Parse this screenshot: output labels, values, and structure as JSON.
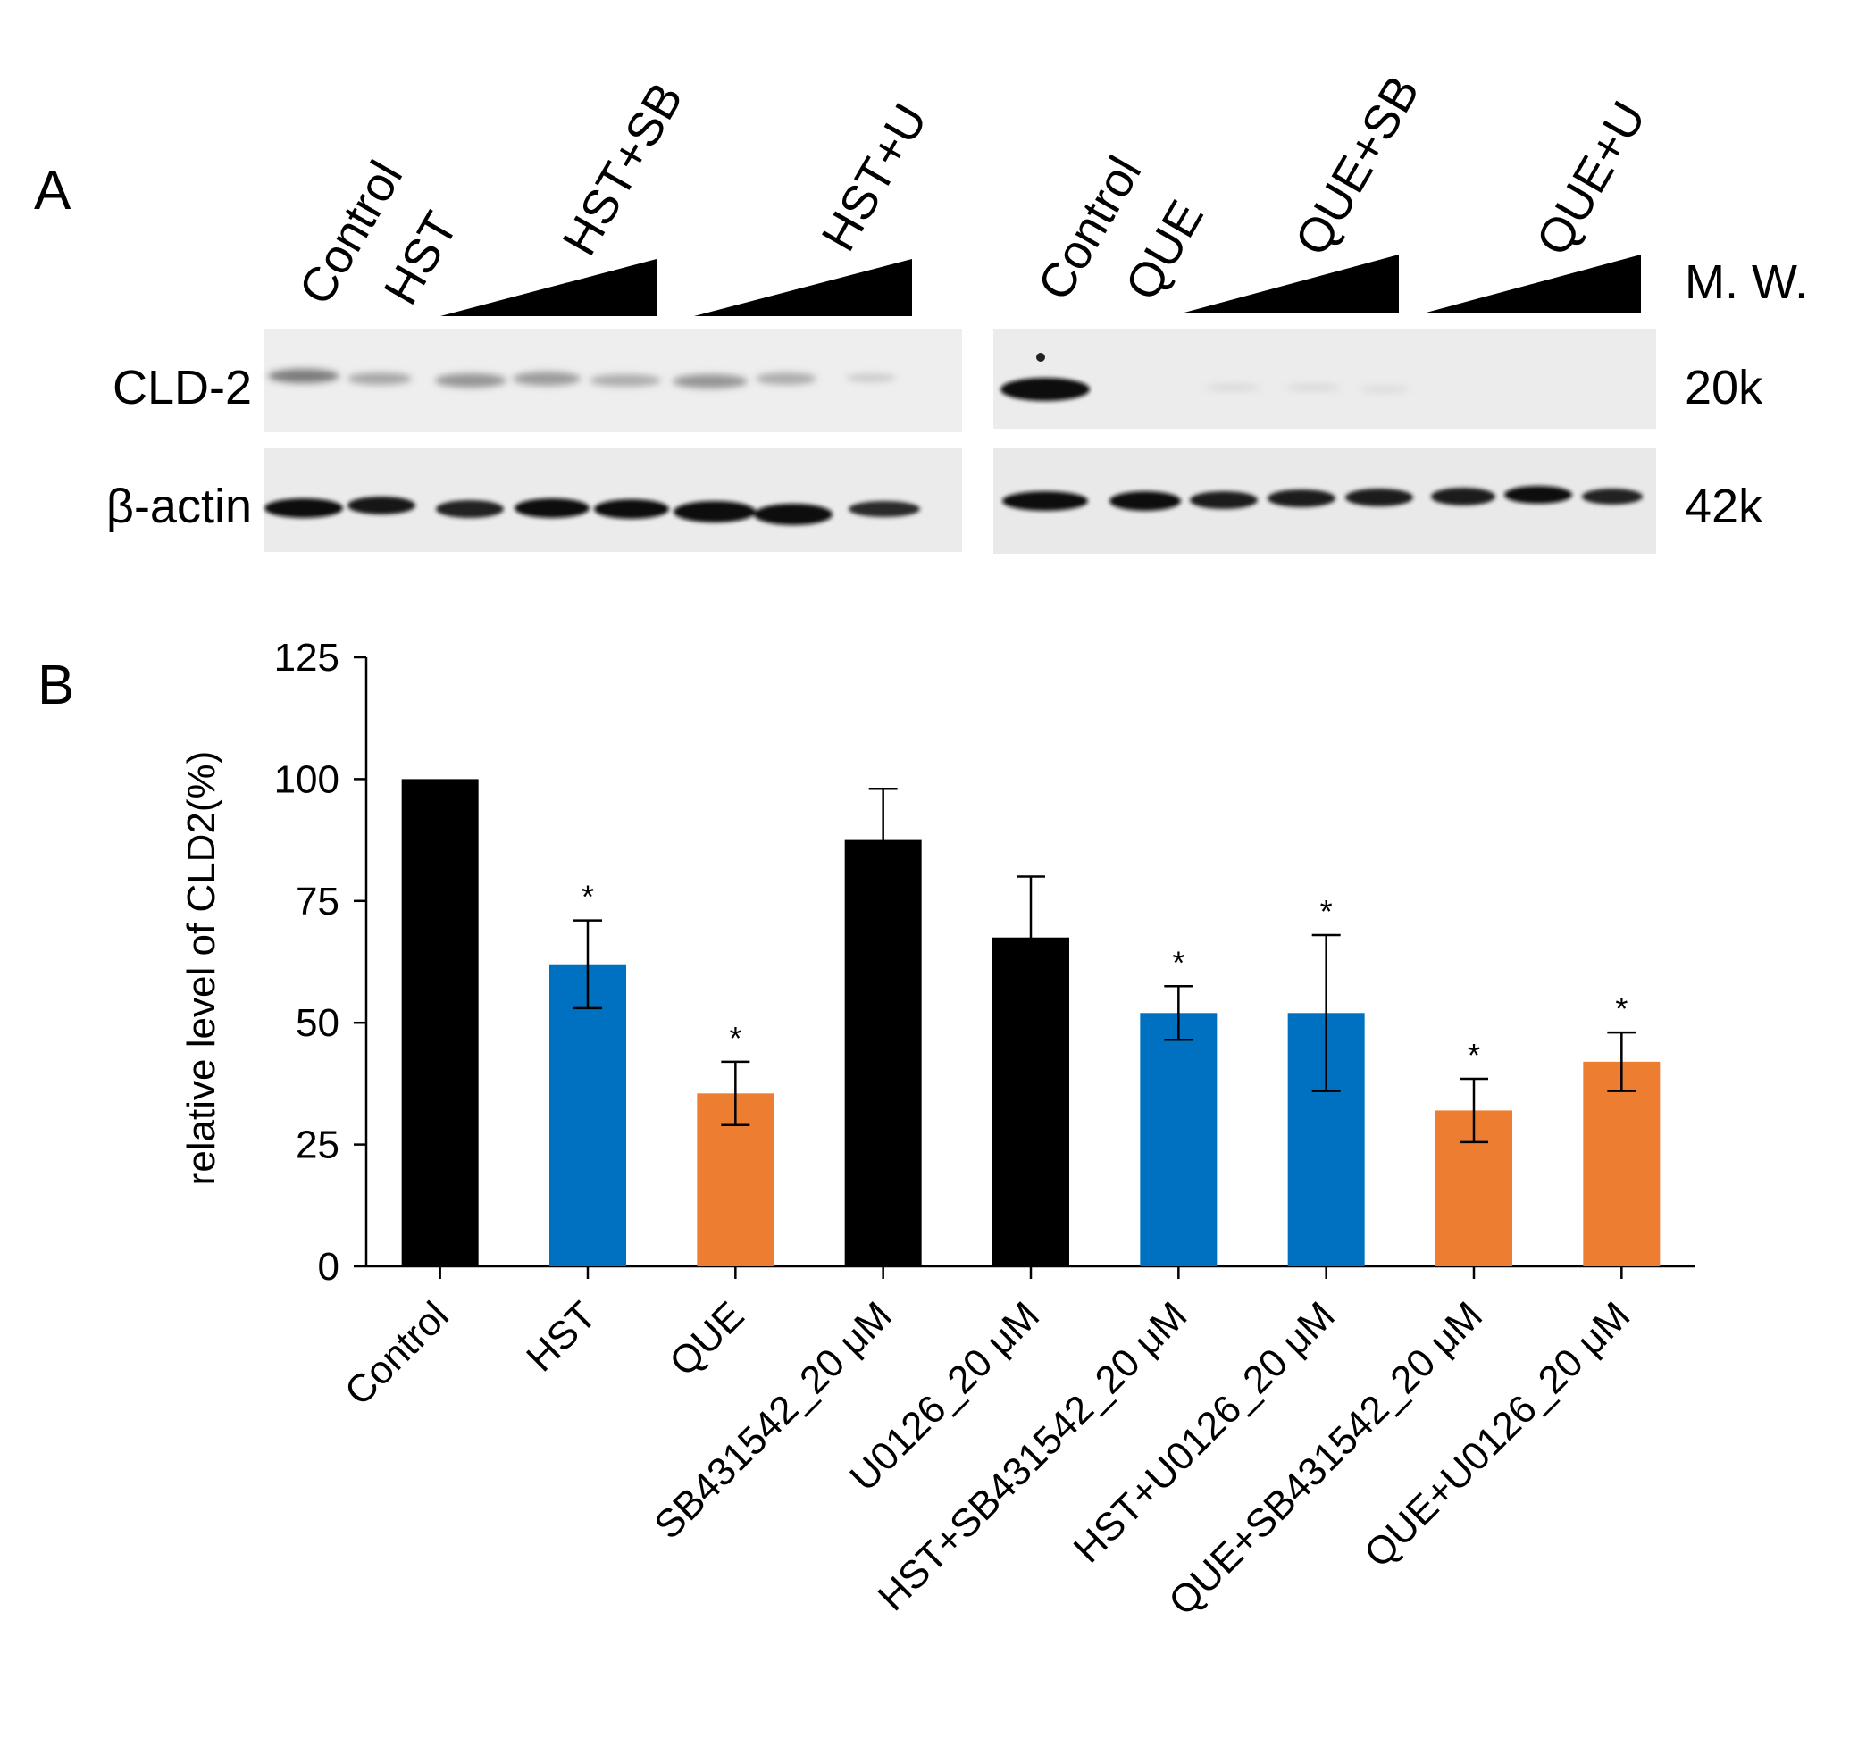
{
  "panels": {
    "a_label": "A",
    "b_label": "B"
  },
  "blot": {
    "left_lanes": [
      "Control",
      "HST"
    ],
    "left_groups": [
      "HST+SB",
      "HST+U"
    ],
    "right_lanes": [
      "Control",
      "QUE"
    ],
    "right_groups": [
      "QUE+SB",
      "QUE+U"
    ],
    "mw_header": "M. W.",
    "rows": [
      {
        "label": "CLD-2",
        "mw": "20k"
      },
      {
        "label": "β-actin",
        "mw": "42k"
      }
    ]
  },
  "chart_data": {
    "type": "bar",
    "ylabel": "relative level of CLD2(%)",
    "xlabel": "",
    "ylim": [
      0,
      125
    ],
    "yticks": [
      0,
      25,
      50,
      75,
      100,
      125
    ],
    "categories": [
      "Control",
      "HST",
      "QUE",
      "SB431542_20 μM",
      "U0126_20 μM",
      "HST+SB431542_20 μM",
      "HST+U0126_20 μM",
      "QUE+SB431542_20 μM",
      "QUE+U0126_20 μM"
    ],
    "values": [
      100,
      62,
      35.5,
      87.5,
      67.5,
      52,
      52,
      32,
      42
    ],
    "errors": [
      0,
      9,
      6.5,
      10.5,
      12.5,
      5.5,
      16,
      6.5,
      6
    ],
    "significance": [
      "",
      "*",
      "*",
      "",
      "",
      "*",
      "*",
      "*",
      "*"
    ],
    "colors": [
      "#000000",
      "#0070c0",
      "#ed7d31",
      "#000000",
      "#000000",
      "#0070c0",
      "#0070c0",
      "#ed7d31",
      "#ed7d31"
    ]
  }
}
